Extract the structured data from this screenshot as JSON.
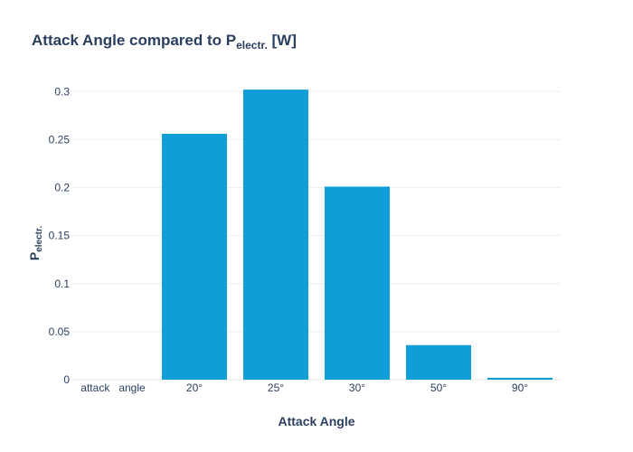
{
  "chart_data": {
    "type": "bar",
    "title": {
      "main": "Attack Angle compared to P",
      "subscript": "electr.",
      "suffix": " [W]"
    },
    "xlabel": "Attack Angle",
    "ylabel": {
      "main": "P",
      "subscript": "electr."
    },
    "categories": [
      "attack   angle",
      "20°",
      "25°",
      "30°",
      "50°",
      "90°"
    ],
    "values": [
      0,
      0.256,
      0.302,
      0.201,
      0.036,
      0.002
    ],
    "ylim": [
      0,
      0.32
    ],
    "yticks": [
      0,
      0.05,
      0.1,
      0.15,
      0.2,
      0.25,
      0.3
    ],
    "ytick_labels": [
      "0",
      "0.05",
      "0.1",
      "0.15",
      "0.2",
      "0.25",
      "0.3"
    ],
    "grid": true,
    "bar_color": "#109dd8"
  }
}
